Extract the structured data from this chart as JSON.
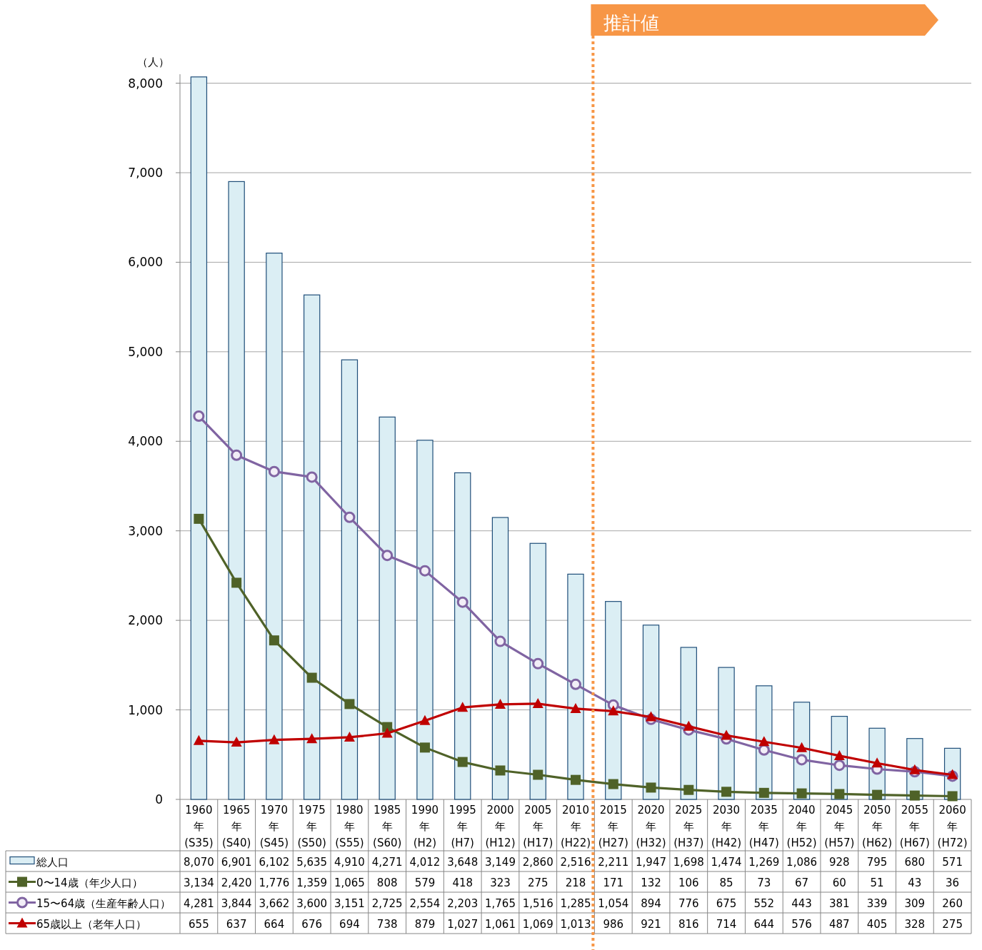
{
  "chart_data": {
    "type": "bar",
    "ylabel": "（人）",
    "categories": [
      "1960\n年\n(S35)",
      "1965\n年\n(S40)",
      "1970\n年\n(S45)",
      "1975\n年\n(S50)",
      "1980\n年\n(S55)",
      "1985\n年\n(S60)",
      "1990\n年\n(H2)",
      "1995\n年\n(H7)",
      "2000\n年\n(H12)",
      "2005\n年\n(H17)",
      "2010\n年\n(H22)",
      "2015\n年\n(H27)",
      "2020\n年\n(H32)",
      "2025\n年\n(H37)",
      "2030\n年\n(H42)",
      "2035\n年\n(H47)",
      "2040\n年\n(H52)",
      "2045\n年\n(H57)",
      "2050\n年\n(H62)",
      "2055\n年\n(H67)",
      "2060\n年\n(H72)"
    ],
    "series": [
      {
        "name": "総人口",
        "color": "#dbeef4",
        "values": [
          8070,
          6901,
          6102,
          5635,
          4910,
          4271,
          4012,
          3648,
          3149,
          2860,
          2516,
          2211,
          1947,
          1698,
          1474,
          1269,
          1086,
          928,
          795,
          680,
          571
        ],
        "value_labels": [
          "8,070",
          "6,901",
          "6,102",
          "5,635",
          "4,910",
          "4,271",
          "4,012",
          "3,648",
          "3,149",
          "2,860",
          "2,516",
          "2,211",
          "1,947",
          "1,698",
          "1,474",
          "1,269",
          "1,086",
          "928",
          "795",
          "680",
          "571"
        ]
      },
      {
        "name": "0〜14歳（年少人口）",
        "type": "line",
        "marker": "square",
        "color": "#4f6228",
        "values": [
          3134,
          2420,
          1776,
          1359,
          1065,
          808,
          579,
          418,
          323,
          275,
          218,
          171,
          132,
          106,
          85,
          73,
          67,
          60,
          51,
          43,
          36
        ],
        "value_labels": [
          "3,134",
          "2,420",
          "1,776",
          "1,359",
          "1,065",
          "808",
          "579",
          "418",
          "323",
          "275",
          "218",
          "171",
          "132",
          "106",
          "85",
          "73",
          "67",
          "60",
          "51",
          "43",
          "36"
        ]
      },
      {
        "name": "15〜64歳（生産年齢人口）",
        "type": "line",
        "marker": "circle",
        "color": "#8064a2",
        "values": [
          4281,
          3844,
          3662,
          3600,
          3151,
          2725,
          2554,
          2203,
          1765,
          1516,
          1285,
          1054,
          894,
          776,
          675,
          552,
          443,
          381,
          339,
          309,
          260
        ],
        "value_labels": [
          "4,281",
          "3,844",
          "3,662",
          "3,600",
          "3,151",
          "2,725",
          "2,554",
          "2,203",
          "1,765",
          "1,516",
          "1,285",
          "1,054",
          "894",
          "776",
          "675",
          "552",
          "443",
          "381",
          "339",
          "309",
          "260"
        ]
      },
      {
        "name": "65歳以上（老年人口）",
        "type": "line",
        "marker": "triangle",
        "color": "#c00000",
        "values": [
          655,
          637,
          664,
          676,
          694,
          738,
          879,
          1027,
          1061,
          1069,
          1013,
          986,
          921,
          816,
          714,
          644,
          576,
          487,
          405,
          328,
          275
        ],
        "value_labels": [
          "655",
          "637",
          "664",
          "676",
          "694",
          "738",
          "879",
          "1,027",
          "1,061",
          "1,069",
          "1,013",
          "986",
          "921",
          "816",
          "714",
          "644",
          "576",
          "487",
          "405",
          "328",
          "275"
        ]
      }
    ],
    "ylim": [
      0,
      8100
    ],
    "yticks": [
      0,
      {
        "value": 1000,
        "label": "1,000"
      },
      {
        "value": 2000,
        "label": "2,000"
      },
      {
        "value": 3000,
        "label": "3,000"
      },
      {
        "value": 4000,
        "label": "4,000"
      },
      {
        "value": 5000,
        "label": "5,000"
      },
      {
        "value": 6000,
        "label": "6,000"
      },
      {
        "value": 7000,
        "label": "7,000"
      },
      {
        "value": 8000,
        "label": "8,000"
      }
    ],
    "ref_lines": [
      {
        "axis": "x",
        "value": "2015\n年\n(H27)",
        "label": "推計値",
        "color": "#f79646",
        "line_style": "dotted"
      }
    ],
    "grid": "y",
    "legend": "bottom"
  }
}
